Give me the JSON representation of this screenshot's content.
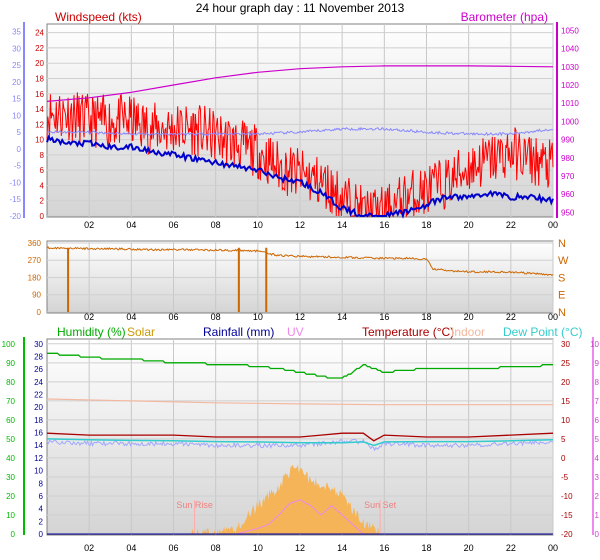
{
  "title": "24 hour graph day : 11 November 2013",
  "x_ticks": [
    "02",
    "04",
    "06",
    "08",
    "10",
    "12",
    "14",
    "16",
    "18",
    "20",
    "22",
    "00"
  ],
  "colors": {
    "windspeed": "#ff0000",
    "windspeed_label": "#cc0000",
    "avg_wind": "#0000cc",
    "barometer": "#cc00cc",
    "temp_axis": "#8888ff",
    "direction": "#cc6600",
    "humidity": "#00aa00",
    "solar": "#cc9900",
    "rainfall": "#000099",
    "uv": "#ee88ee",
    "temperature": "#aa0000",
    "indoor": "#f4b8a0",
    "dewpoint": "#33cccc",
    "humidity_axis": "#00bb00",
    "solar_fill": "#f4b457",
    "sun_lines": "#ffaaaa",
    "sun_label": "#f08080"
  },
  "panel1": {
    "windspeed_label": "Windspeed (kts)",
    "barometer_label": "Barometer (hpa)",
    "wind_axis": [
      "0",
      "2",
      "4",
      "6",
      "8",
      "10",
      "12",
      "14",
      "16",
      "18",
      "20",
      "22",
      "24"
    ],
    "temp_axis": [
      "-20",
      "-15",
      "-10",
      "-5",
      "0",
      "5",
      "10",
      "15",
      "20",
      "25",
      "30",
      "35"
    ],
    "baro_axis": [
      "950",
      "960",
      "970",
      "980",
      "990",
      "1000",
      "1010",
      "1020",
      "1030",
      "1040",
      "1050"
    ]
  },
  "panel2": {
    "deg_axis": [
      "0",
      "90",
      "180",
      "270",
      "360"
    ],
    "compass": [
      "N",
      "E",
      "S",
      "W",
      "N"
    ]
  },
  "panel3": {
    "labels": {
      "humidity": "Humidity (%)",
      "solar": "Solar",
      "rainfall": "Rainfall (mm)",
      "uv": "UV",
      "temperature": "Temperature (°C)",
      "indoor": "Indoor",
      "dewpoint": "Dew Point (°C)"
    },
    "hum_axis": [
      "0",
      "10",
      "20",
      "30",
      "40",
      "50",
      "60",
      "70",
      "80",
      "90",
      "100"
    ],
    "rain_axis": [
      "0",
      "2",
      "4",
      "6",
      "8",
      "10",
      "12",
      "14",
      "16",
      "18",
      "20",
      "22",
      "24",
      "26",
      "28",
      "30"
    ],
    "temp_axis": [
      "-20",
      "-15",
      "-10",
      "-5",
      "0",
      "5",
      "10",
      "15",
      "20",
      "25",
      "30"
    ],
    "uv_axis": [
      "0",
      "1",
      "2",
      "3",
      "4",
      "5",
      "6",
      "7",
      "8",
      "9",
      "10"
    ],
    "sun_rise": "Sun Rise",
    "sun_set": "Sun Set"
  },
  "chart_data": [
    {
      "type": "line",
      "title": "24 hour graph day : 11 November 2013",
      "x_label": "hour",
      "x_ticks": [
        "02",
        "04",
        "06",
        "08",
        "10",
        "12",
        "14",
        "16",
        "18",
        "20",
        "22",
        "00"
      ],
      "series": [
        {
          "name": "Windspeed (kts)",
          "axis": "Windspeed (kts)",
          "x": [
            0,
            1,
            2,
            3,
            4,
            5,
            6,
            7,
            8,
            9,
            10,
            11,
            12,
            13,
            14,
            15,
            16,
            17,
            18,
            19,
            20,
            21,
            22,
            23,
            24
          ],
          "values": [
            13,
            13,
            12,
            12,
            12,
            11,
            11,
            11,
            10,
            9,
            8,
            6,
            5,
            4,
            2,
            0,
            0,
            2,
            3,
            4,
            6,
            7,
            8,
            7,
            6
          ]
        },
        {
          "name": "Avg wind (kts)",
          "x": [
            0,
            1,
            2,
            3,
            4,
            5,
            6,
            7,
            8,
            9,
            10,
            11,
            12,
            13,
            14,
            15,
            16,
            17,
            18,
            19,
            20,
            21,
            22,
            23,
            24
          ],
          "values": [
            10,
            9.5,
            9.5,
            9,
            9,
            8.5,
            8,
            7.5,
            7,
            6.5,
            6,
            5,
            4.5,
            3,
            1,
            0,
            0,
            0.5,
            1.5,
            2.5,
            2.5,
            3,
            2.5,
            2.5,
            2
          ]
        },
        {
          "name": "Barometer (hpa)",
          "x": [
            0,
            2,
            4,
            6,
            8,
            10,
            12,
            14,
            16,
            18,
            20,
            22,
            24
          ],
          "values": [
            1011,
            1013,
            1016,
            1020,
            1024,
            1027,
            1029,
            1030,
            1030.5,
            1030.5,
            1030.5,
            1030.3,
            1030
          ]
        },
        {
          "name": "Temperature (°C)",
          "x": [
            0,
            2,
            4,
            6,
            8,
            10,
            12,
            14,
            16,
            18,
            20,
            22,
            24
          ],
          "values": [
            5,
            5,
            4.5,
            4.5,
            4.5,
            4.5,
            5,
            6,
            6,
            5,
            4.5,
            4.5,
            6
          ]
        }
      ],
      "ylim": [
        0,
        24
      ],
      "y2lim": [
        950,
        1050
      ]
    },
    {
      "type": "line",
      "series": [
        {
          "name": "Wind direction (°)",
          "x": [
            0,
            1,
            2,
            3,
            4,
            5,
            6,
            7,
            8,
            9,
            10,
            10.5,
            11,
            12,
            13,
            14,
            15,
            16,
            17,
            18,
            18.3,
            19,
            20,
            21,
            22,
            23,
            24
          ],
          "values": [
            335,
            333,
            330,
            330,
            328,
            325,
            325,
            325,
            322,
            322,
            318,
            305,
            295,
            290,
            288,
            285,
            282,
            280,
            280,
            275,
            225,
            215,
            210,
            210,
            208,
            200,
            195
          ]
        }
      ],
      "compass": [
        "N",
        "E",
        "S",
        "W",
        "N"
      ],
      "ylim": [
        0,
        360
      ]
    },
    {
      "type": "area",
      "series": [
        {
          "name": "Humidity (%)",
          "axis": "Humidity (%)",
          "x": [
            0,
            1,
            2,
            3,
            4,
            5,
            6,
            7,
            8,
            9,
            10,
            11,
            12,
            13,
            13.5,
            14,
            14.5,
            15,
            16,
            17,
            18,
            19,
            20,
            21,
            22,
            23,
            24
          ],
          "values": [
            95,
            94,
            93,
            92,
            92,
            91,
            90,
            90,
            89,
            89,
            88,
            87,
            85,
            83,
            82,
            82,
            85,
            89,
            85,
            86,
            87,
            87,
            87,
            87,
            88,
            88,
            89
          ]
        },
        {
          "name": "Temperature (°C)",
          "x": [
            0,
            2,
            4,
            6,
            8,
            10,
            12,
            13,
            14,
            15,
            15.5,
            16,
            18,
            20,
            22,
            24
          ],
          "values": [
            6.5,
            6,
            6,
            6,
            5.5,
            5.5,
            5.5,
            6,
            6.5,
            6.5,
            4.5,
            6,
            5.5,
            5.5,
            6,
            6.5
          ]
        },
        {
          "name": "Dew Point (°C)",
          "x": [
            0,
            2,
            4,
            6,
            8,
            10,
            12,
            14,
            15,
            15.5,
            16,
            18,
            20,
            22,
            24
          ],
          "values": [
            5,
            4.8,
            4.6,
            4.5,
            4.3,
            4.2,
            4,
            4,
            4.2,
            3.3,
            4.2,
            4.3,
            4.3,
            4.5,
            4.8
          ]
        },
        {
          "name": "Indoor",
          "x": [
            0,
            4,
            8,
            12,
            16,
            20,
            24
          ],
          "values": [
            15.5,
            15,
            14.5,
            14.2,
            14,
            14,
            14
          ]
        },
        {
          "name": "Solar",
          "x": [
            6.8,
            7,
            8,
            9,
            10,
            10.5,
            11,
            11.5,
            12,
            12.5,
            13,
            13.5,
            14,
            15,
            15.8
          ],
          "values": [
            0,
            0,
            0,
            0.3,
            1.5,
            2,
            2.5,
            3.3,
            3.5,
            2.8,
            2.6,
            2.5,
            2,
            0.6,
            0
          ]
        },
        {
          "name": "UV",
          "x": [
            8,
            9,
            10,
            10.5,
            11,
            11.5,
            12,
            12.5,
            13,
            13.5,
            14,
            14.5,
            15
          ],
          "values": [
            0,
            0,
            0.3,
            0.5,
            1,
            1.6,
            1.8,
            1.5,
            1,
            1.5,
            1,
            0.5,
            0
          ]
        },
        {
          "name": "Rainfall (mm)",
          "x": [
            0,
            24
          ],
          "values": [
            0,
            0
          ]
        }
      ],
      "annotations": [
        "Sun Rise",
        "Sun Set"
      ],
      "ylim": [
        0,
        100
      ]
    }
  ]
}
